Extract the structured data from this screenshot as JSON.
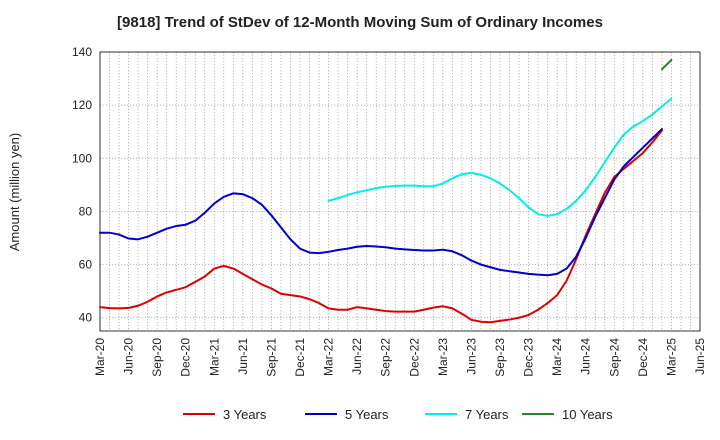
{
  "chart_data": {
    "type": "line",
    "title": "[9818]  Trend of StDev of 12-Month Moving Sum of Ordinary Incomes",
    "ylabel": "Amount (million yen)",
    "xlabel": "",
    "ylim": [
      35,
      140
    ],
    "yticks": [
      40,
      60,
      80,
      100,
      120,
      140
    ],
    "xticks": [
      "Mar-20",
      "Jun-20",
      "Sep-20",
      "Dec-20",
      "Mar-21",
      "Jun-21",
      "Sep-21",
      "Dec-21",
      "Mar-22",
      "Jun-22",
      "Sep-22",
      "Dec-22",
      "Mar-23",
      "Jun-23",
      "Sep-23",
      "Dec-23",
      "Mar-24",
      "Jun-24",
      "Sep-24",
      "Dec-24",
      "Mar-25",
      "Jun-25"
    ],
    "grid": true,
    "legend_position": "bottom",
    "series": [
      {
        "name": "3 Years",
        "color": "#dd0000",
        "start": "Mar-20",
        "values": [
          44,
          43.6,
          43.5,
          43.7,
          44.5,
          46,
          48,
          49.5,
          50.5,
          51.5,
          53.5,
          55.5,
          58.5,
          59.5,
          58.5,
          56.5,
          54.5,
          52.5,
          51,
          49,
          48.5,
          48,
          47,
          45.5,
          43.5,
          43,
          43,
          44,
          43.5,
          43,
          42.5,
          42.3,
          42.3,
          42.3,
          43,
          43.8,
          44.3,
          43.5,
          41.5,
          39.2,
          38.5,
          38.3,
          38.8,
          39.3,
          40,
          41,
          43,
          45.5,
          48.5,
          54,
          62,
          71,
          79,
          87,
          93,
          96,
          99,
          102,
          106,
          110.5
        ]
      },
      {
        "name": "5 Years",
        "color": "#0000cc",
        "start": "Mar-20",
        "values": [
          72,
          72,
          71.3,
          69.8,
          69.5,
          70.5,
          72,
          73.5,
          74.5,
          75,
          76.5,
          79.5,
          83,
          85.5,
          86.8,
          86.5,
          85,
          82.5,
          78.5,
          74,
          69.5,
          66,
          64.5,
          64.3,
          64.8,
          65.5,
          66,
          66.7,
          67,
          66.8,
          66.5,
          66,
          65.7,
          65.5,
          65.3,
          65.3,
          65.6,
          65,
          63.5,
          61.5,
          60,
          59,
          58,
          57.5,
          57,
          56.5,
          56.2,
          56,
          56.5,
          58.5,
          63,
          70,
          78,
          85,
          92,
          97,
          100.5,
          104,
          107.5,
          111
        ]
      },
      {
        "name": "7 Years",
        "color": "#00eeee",
        "start": "Mar-22",
        "values": [
          84,
          85,
          86.2,
          87.2,
          88,
          88.8,
          89.3,
          89.6,
          89.7,
          89.7,
          89.5,
          89.5,
          90.5,
          92.5,
          94,
          94.5,
          93.8,
          92.5,
          90.5,
          88,
          85,
          81.5,
          79,
          78.3,
          79,
          81,
          84,
          88,
          93,
          98.5,
          104,
          109,
          112,
          114,
          116.5,
          119.5,
          122.5
        ]
      },
      {
        "name": "10 Years",
        "color": "#228822",
        "start": "Feb-25",
        "values": [
          133.5,
          137
        ]
      }
    ]
  }
}
